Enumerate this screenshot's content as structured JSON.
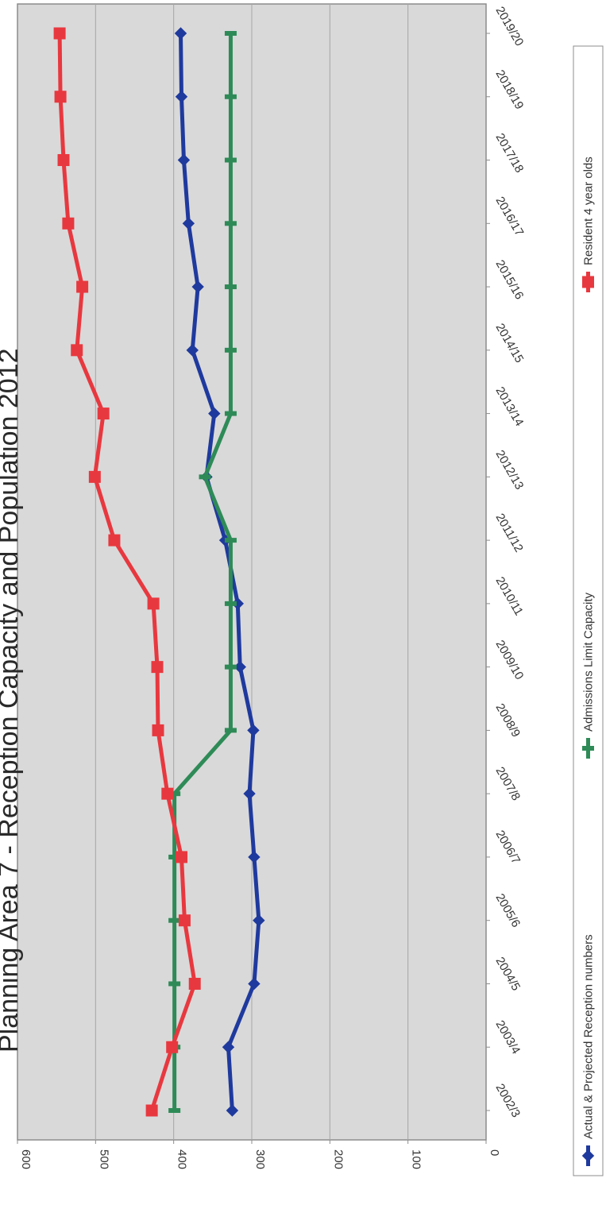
{
  "chart_data": {
    "type": "line",
    "title": "Planning Area 7 - Reception Capacity and Population 2012",
    "xlabel": "",
    "ylabel": "",
    "ylim": [
      0,
      600
    ],
    "yticks": [
      0,
      100,
      200,
      300,
      400,
      500,
      600
    ],
    "grid": true,
    "legend_position": "bottom",
    "categories": [
      "2002/3",
      "2003/4",
      "2004/5",
      "2005/6",
      "2006/7",
      "2007/8",
      "2008/9",
      "2009/10",
      "2010/11",
      "2011/12",
      "2012/13",
      "2013/14",
      "2014/15",
      "2015/16",
      "2016/17",
      "2017/18",
      "2018/19",
      "2019/20"
    ],
    "series": [
      {
        "name": "Actual & Projected Reception numbers",
        "color": "#1f3a9e",
        "marker": "diamond",
        "values": [
          325,
          330,
          297,
          291,
          297,
          303,
          298,
          315,
          318,
          334,
          358,
          348,
          376,
          369,
          381,
          387,
          390,
          391
        ]
      },
      {
        "name": "Admissions Limit Capacity",
        "color": "#2e8b57",
        "marker": "bar",
        "values": [
          399,
          399,
          399,
          399,
          399,
          399,
          327,
          327,
          327,
          327,
          360,
          327,
          327,
          327,
          327,
          327,
          327,
          327
        ]
      },
      {
        "name": "Resident 4 year olds",
        "color": "#e8383f",
        "marker": "square",
        "values": [
          428,
          402,
          373,
          386,
          390,
          408,
          420,
          421,
          426,
          476,
          501,
          490,
          524,
          517,
          535,
          541,
          545,
          546
        ]
      }
    ]
  }
}
